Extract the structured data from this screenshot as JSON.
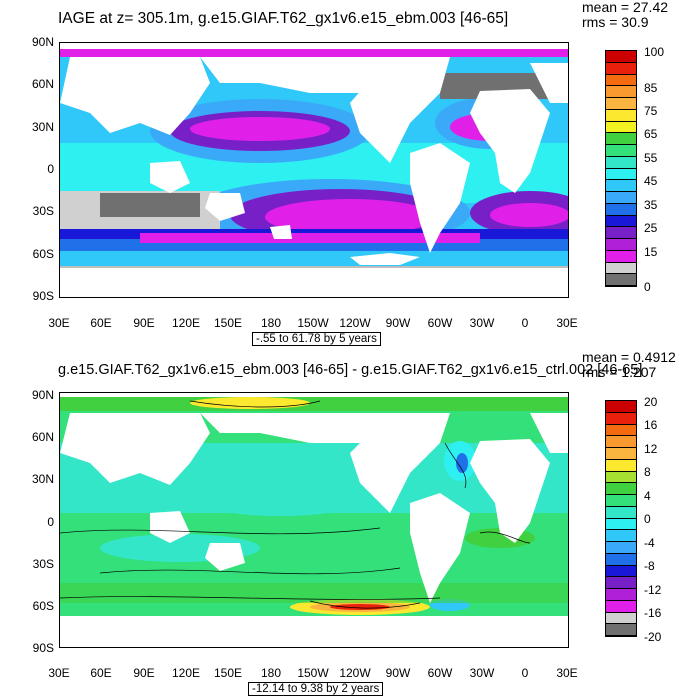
{
  "panels": [
    {
      "title": "IAGE at z= 305.1m, g.e15.GIAF.T62_gx1v6.e15_ebm.003 [46-65]",
      "mean": "mean = 27.42",
      "rms": "rms = 30.9",
      "range_label": "-.55 to 61.78 by 5 years",
      "colorbar_labels": [
        "100",
        "85",
        "75",
        "65",
        "55",
        "45",
        "35",
        "25",
        "15",
        "0"
      ],
      "colorbar_colors": [
        "#cc0000",
        "#e8200c",
        "#f46a10",
        "#f89a30",
        "#fab440",
        "#fde830",
        "#f2f220",
        "#40d040",
        "#33e07a",
        "#33e6c8",
        "#2ef0f0",
        "#30c8f8",
        "#3aaaf8",
        "#2070ea",
        "#1a18d8",
        "#7820c8",
        "#b020d8",
        "#e020e8",
        "#d0d0d0",
        "#707070"
      ]
    },
    {
      "title": "g.e15.GIAF.T62_gx1v6.e15_ebm.003 [46-65] - g.e15.GIAF.T62_gx1v6.e15_ctrl.002 [46-65]",
      "mean": "mean = 0.4912",
      "rms": "rms = 1.207",
      "range_label": "-12.14 to 9.38 by 2 years",
      "colorbar_labels": [
        "20",
        "16",
        "12",
        "8",
        "4",
        "0",
        "-4",
        "-8",
        "-12",
        "-16",
        "-20"
      ],
      "colorbar_colors": [
        "#cc0000",
        "#e8200c",
        "#f46a10",
        "#f89a30",
        "#fab440",
        "#fde830",
        "#a6e030",
        "#40d040",
        "#33e07a",
        "#33e6c8",
        "#2ef0f0",
        "#30c8f8",
        "#3aaaf8",
        "#2070ea",
        "#1a18d8",
        "#7820c8",
        "#b020d8",
        "#e020e8",
        "#d0d0d0",
        "#707070"
      ]
    }
  ],
  "lat_labels": [
    "90N",
    "60N",
    "30N",
    "0",
    "30S",
    "60S",
    "90S"
  ],
  "lon_labels": [
    "30E",
    "60E",
    "90E",
    "120E",
    "150E",
    "180",
    "150W",
    "120W",
    "90W",
    "60W",
    "30W",
    "0",
    "30E"
  ]
}
